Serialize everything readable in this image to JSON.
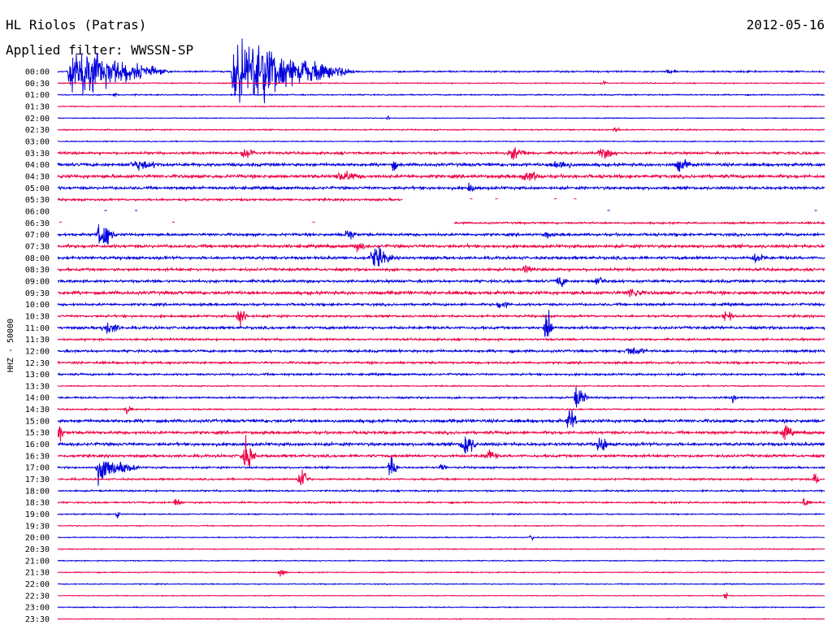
{
  "header": {
    "station": "HL Riolos (Patras)",
    "filter": "Applied filter: WWSSN-SP",
    "date": "2012-05-16"
  },
  "chart_data": {
    "type": "line",
    "title": "HL Riolos (Patras)",
    "subtitle": "Applied filter: WWSSN-SP",
    "date": "2012-05-16",
    "ylabel": "HHZ - 50000",
    "xlabel": "",
    "traces_per_hour": 2,
    "trace_length_minutes": 30,
    "colors": {
      "even": "#0000dd",
      "odd": "#ee0044"
    },
    "y_tick_labels": [
      "00:00",
      "00:30",
      "01:00",
      "01:30",
      "02:00",
      "02:30",
      "03:00",
      "03:30",
      "04:00",
      "04:30",
      "05:00",
      "05:30",
      "06:00",
      "06:30",
      "07:00",
      "07:30",
      "08:00",
      "08:30",
      "09:00",
      "09:30",
      "10:00",
      "10:30",
      "11:00",
      "11:30",
      "12:00",
      "12:30",
      "13:00",
      "13:30",
      "14:00",
      "14:30",
      "15:00",
      "15:30",
      "16:00",
      "16:30",
      "17:00",
      "17:30",
      "18:00",
      "18:30",
      "19:00",
      "19:30",
      "20:00",
      "20:30",
      "21:00",
      "21:30",
      "22:00",
      "22:30",
      "23:00",
      "23:30"
    ],
    "noise_level": [
      0.8,
      0.5,
      0.6,
      0.5,
      0.4,
      0.6,
      0.5,
      1.2,
      1.5,
      1.6,
      1.4,
      1.1,
      0.5,
      0.9,
      1.3,
      1.5,
      1.4,
      1.3,
      1.3,
      1.6,
      1.2,
      1.1,
      1.3,
      1.0,
      1.2,
      1.1,
      1.0,
      0.6,
      0.9,
      0.7,
      1.5,
      1.4,
      1.5,
      1.3,
      0.9,
      0.9,
      0.8,
      0.8,
      0.6,
      0.5,
      0.5,
      0.5,
      0.5,
      0.5,
      0.5,
      0.4,
      0.5,
      0.4
    ],
    "gaps": [
      {
        "trace": "05:30",
        "from_min": 13.5,
        "to_min": 30
      },
      {
        "trace": "06:00",
        "from_min": 0,
        "to_min": 30
      },
      {
        "trace": "06:30",
        "from_min": 0,
        "to_min": 15.5
      }
    ],
    "events": [
      {
        "trace": "00:00",
        "minute": 0.4,
        "amplitude": 26,
        "duration_min": 1.3,
        "clipped": true
      },
      {
        "trace": "00:00",
        "minute": 6.8,
        "amplitude": 34,
        "duration_min": 1.6,
        "clipped": true
      },
      {
        "trace": "00:00",
        "minute": 23.9,
        "amplitude": 3,
        "duration_min": 0.5
      },
      {
        "trace": "00:30",
        "minute": 21.3,
        "amplitude": 3,
        "duration_min": 0.3
      },
      {
        "trace": "01:00",
        "minute": 2.2,
        "amplitude": 3,
        "duration_min": 0.2
      },
      {
        "trace": "02:00",
        "minute": 12.9,
        "amplitude": 5,
        "duration_min": 0.1
      },
      {
        "trace": "02:30",
        "minute": 21.8,
        "amplitude": 3,
        "duration_min": 0.3
      },
      {
        "trace": "03:30",
        "minute": 7.3,
        "amplitude": 8,
        "duration_min": 0.6
      },
      {
        "trace": "03:30",
        "minute": 17.8,
        "amplitude": 7,
        "duration_min": 0.8
      },
      {
        "trace": "03:30",
        "minute": 21.3,
        "amplitude": 6,
        "duration_min": 0.8
      },
      {
        "trace": "04:00",
        "minute": 3.1,
        "amplitude": 5,
        "duration_min": 1.5
      },
      {
        "trace": "04:00",
        "minute": 13.1,
        "amplitude": 7,
        "duration_min": 0.3
      },
      {
        "trace": "04:00",
        "minute": 19.5,
        "amplitude": 6,
        "duration_min": 1.0
      },
      {
        "trace": "04:00",
        "minute": 24.3,
        "amplitude": 7,
        "duration_min": 0.7
      },
      {
        "trace": "04:30",
        "minute": 11.1,
        "amplitude": 6,
        "duration_min": 1.2
      },
      {
        "trace": "04:30",
        "minute": 18.3,
        "amplitude": 6,
        "duration_min": 1.0
      },
      {
        "trace": "05:00",
        "minute": 16.1,
        "amplitude": 6,
        "duration_min": 0.4
      },
      {
        "trace": "07:00",
        "minute": 1.7,
        "amplitude": 18,
        "duration_min": 0.6
      },
      {
        "trace": "07:00",
        "minute": 11.3,
        "amplitude": 7,
        "duration_min": 0.5
      },
      {
        "trace": "07:00",
        "minute": 19.1,
        "amplitude": 5,
        "duration_min": 0.4
      },
      {
        "trace": "07:30",
        "minute": 11.7,
        "amplitude": 6,
        "duration_min": 0.5
      },
      {
        "trace": "08:00",
        "minute": 12.4,
        "amplitude": 11,
        "duration_min": 0.9
      },
      {
        "trace": "08:00",
        "minute": 27.3,
        "amplitude": 6,
        "duration_min": 0.6
      },
      {
        "trace": "08:30",
        "minute": 18.3,
        "amplitude": 5,
        "duration_min": 0.5
      },
      {
        "trace": "09:00",
        "minute": 19.6,
        "amplitude": 7,
        "duration_min": 0.5
      },
      {
        "trace": "09:00",
        "minute": 21.1,
        "amplitude": 6,
        "duration_min": 0.5
      },
      {
        "trace": "09:30",
        "minute": 22.4,
        "amplitude": 6,
        "duration_min": 0.8
      },
      {
        "trace": "10:00",
        "minute": 17.3,
        "amplitude": 5,
        "duration_min": 0.6
      },
      {
        "trace": "10:30",
        "minute": 7.1,
        "amplitude": 12,
        "duration_min": 0.4
      },
      {
        "trace": "10:30",
        "minute": 26.1,
        "amplitude": 6,
        "duration_min": 0.5
      },
      {
        "trace": "11:00",
        "minute": 1.9,
        "amplitude": 7,
        "duration_min": 0.8
      },
      {
        "trace": "11:00",
        "minute": 19.1,
        "amplitude": 25,
        "duration_min": 0.3
      },
      {
        "trace": "12:00",
        "minute": 22.4,
        "amplitude": 5,
        "duration_min": 1.0
      },
      {
        "trace": "14:00",
        "minute": 20.3,
        "amplitude": 12,
        "duration_min": 0.5
      },
      {
        "trace": "14:00",
        "minute": 26.4,
        "amplitude": 5,
        "duration_min": 0.3
      },
      {
        "trace": "14:30",
        "minute": 2.7,
        "amplitude": 6,
        "duration_min": 0.3
      },
      {
        "trace": "15:00",
        "minute": 20.0,
        "amplitude": 14,
        "duration_min": 0.4
      },
      {
        "trace": "15:30",
        "minute": 0.0,
        "amplitude": 13,
        "duration_min": 0.3
      },
      {
        "trace": "15:30",
        "minute": 28.4,
        "amplitude": 7,
        "duration_min": 0.6
      },
      {
        "trace": "16:00",
        "minute": 15.9,
        "amplitude": 14,
        "duration_min": 0.6
      },
      {
        "trace": "16:00",
        "minute": 21.2,
        "amplitude": 10,
        "duration_min": 0.5
      },
      {
        "trace": "16:30",
        "minute": 7.3,
        "amplitude": 18,
        "duration_min": 0.5
      },
      {
        "trace": "16:30",
        "minute": 16.8,
        "amplitude": 7,
        "duration_min": 0.6
      },
      {
        "trace": "17:00",
        "minute": 1.5,
        "amplitude": 15,
        "duration_min": 0.6,
        "clipped": true
      },
      {
        "trace": "17:00",
        "minute": 13.0,
        "amplitude": 13,
        "duration_min": 0.4
      },
      {
        "trace": "17:00",
        "minute": 15.0,
        "amplitude": 5,
        "duration_min": 0.3
      },
      {
        "trace": "17:30",
        "minute": 9.5,
        "amplitude": 16,
        "duration_min": 0.4
      },
      {
        "trace": "17:30",
        "minute": 29.6,
        "amplitude": 7,
        "duration_min": 0.3
      },
      {
        "trace": "18:30",
        "minute": 4.6,
        "amplitude": 5,
        "duration_min": 0.4
      },
      {
        "trace": "18:30",
        "minute": 29.2,
        "amplitude": 6,
        "duration_min": 0.3
      },
      {
        "trace": "19:00",
        "minute": 2.3,
        "amplitude": 5,
        "duration_min": 0.2
      },
      {
        "trace": "20:00",
        "minute": 18.5,
        "amplitude": 5,
        "duration_min": 0.2
      },
      {
        "trace": "21:30",
        "minute": 8.7,
        "amplitude": 4,
        "duration_min": 0.4
      },
      {
        "trace": "22:30",
        "minute": 26.1,
        "amplitude": 5,
        "duration_min": 0.2
      }
    ]
  }
}
